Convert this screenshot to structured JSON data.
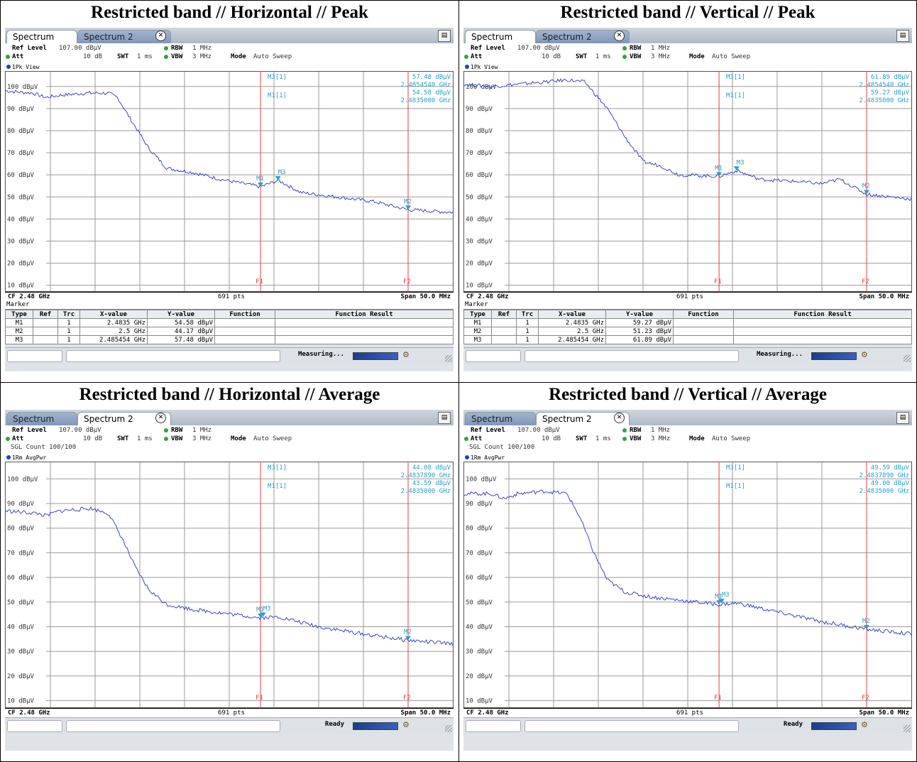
{
  "panels": [
    {
      "title": "Restricted band // Horizontal // Peak",
      "tabs": {
        "tab1": "Spectrum",
        "tab2": "Spectrum 2",
        "active": 1
      },
      "settings": {
        "ref_level_label": "Ref Level",
        "ref_level": "107.00 dBµV",
        "att_label": "Att",
        "att": "10 dB",
        "swt_label": "SWT",
        "swt": "1 ms",
        "rbw_label": "RBW",
        "rbw": "1 MHz",
        "vbw_label": "VBW",
        "vbw": "3 MHz",
        "mode_label": "Mode",
        "mode": "Auto Sweep",
        "sgl_count": ""
      },
      "trace_label": "1Pk View",
      "readout": {
        "line1_name": "M3[1]",
        "line1_value": "57.48 dBµV",
        "line1_freq": "2.4854540 GHz",
        "line2_name": "M1[1]",
        "line2_value": "54.58 dBµV",
        "line2_freq": "2.4835000 GHz"
      },
      "footer": {
        "cf": "CF 2.48 GHz",
        "pts": "691 pts",
        "span": "Span 50.0 MHz"
      },
      "marker_table": {
        "title": "Marker",
        "headers": [
          "Type",
          "Ref",
          "Trc",
          "X-value",
          "Y-value",
          "Function",
          "Function Result"
        ],
        "rows": [
          {
            "type": "M1",
            "ref": "",
            "trc": "1",
            "x": "2.4835 GHz",
            "y": "54.58 dBµV",
            "func": "",
            "result": ""
          },
          {
            "type": "M2",
            "ref": "",
            "trc": "1",
            "x": "2.5 GHz",
            "y": "44.17 dBµV",
            "func": "",
            "result": ""
          },
          {
            "type": "M3",
            "ref": "",
            "trc": "1",
            "x": "2.485454 GHz",
            "y": "57.48 dBµV",
            "func": "",
            "result": ""
          }
        ]
      },
      "status": "Measuring...",
      "colors": {
        "trace": "#3a48c8",
        "marker": "#2a9fc9",
        "line": "#e04040"
      }
    },
    {
      "title": "Restricted band // Vertical // Peak",
      "tabs": {
        "tab1": "Spectrum",
        "tab2": "Spectrum 2",
        "active": 1
      },
      "settings": {
        "ref_level_label": "Ref Level",
        "ref_level": "107.00 dBµV",
        "att_label": "Att",
        "att": "10 dB",
        "swt_label": "SWT",
        "swt": "1 ms",
        "rbw_label": "RBW",
        "rbw": "1 MHz",
        "vbw_label": "VBW",
        "vbw": "3 MHz",
        "mode_label": "Mode",
        "mode": "Auto Sweep",
        "sgl_count": ""
      },
      "trace_label": "1Pk View",
      "readout": {
        "line1_name": "M3[1]",
        "line1_value": "61.89 dBµV",
        "line1_freq": "2.4854540 GHz",
        "line2_name": "M1[1]",
        "line2_value": "59.27 dBµV",
        "line2_freq": "2.4835000 GHz"
      },
      "footer": {
        "cf": "CF 2.48 GHz",
        "pts": "691 pts",
        "span": "Span 50.0 MHz"
      },
      "marker_table": {
        "title": "Marker",
        "headers": [
          "Type",
          "Ref",
          "Trc",
          "X-value",
          "Y-value",
          "Function",
          "Function Result"
        ],
        "rows": [
          {
            "type": "M1",
            "ref": "",
            "trc": "1",
            "x": "2.4835 GHz",
            "y": "59.27 dBµV",
            "func": "",
            "result": ""
          },
          {
            "type": "M2",
            "ref": "",
            "trc": "1",
            "x": "2.5 GHz",
            "y": "51.23 dBµV",
            "func": "",
            "result": ""
          },
          {
            "type": "M3",
            "ref": "",
            "trc": "1",
            "x": "2.485454 GHz",
            "y": "61.89 dBµV",
            "func": "",
            "result": ""
          }
        ]
      },
      "status": "Measuring...",
      "colors": {
        "trace": "#3a48c8",
        "marker": "#2a9fc9",
        "line": "#e04040"
      }
    },
    {
      "title": "Restricted band // Horizontal // Average",
      "tabs": {
        "tab1": "Spectrum",
        "tab2": "Spectrum 2",
        "active": 2
      },
      "settings": {
        "ref_level_label": "Ref Level",
        "ref_level": "107.00 dBµV",
        "att_label": "Att",
        "att": "10 dB",
        "swt_label": "SWT",
        "swt": "1 ms",
        "rbw_label": "RBW",
        "rbw": "1 MHz",
        "vbw_label": "VBW",
        "vbw": "3 MHz",
        "mode_label": "Mode",
        "mode": "Auto Sweep",
        "sgl_count": "SGL Count 100/100"
      },
      "trace_label": "1Rm AvgPwr",
      "readout": {
        "line1_name": "M3[1]",
        "line1_value": "44.08 dBµV",
        "line1_freq": "2.4837890 GHz",
        "line2_name": "M1[1]",
        "line2_value": "43.59 dBµV",
        "line2_freq": "2.4835000 GHz"
      },
      "footer": {
        "cf": "CF 2.48 GHz",
        "pts": "691 pts",
        "span": "Span 50.0 MHz"
      },
      "marker_table": null,
      "status": "Ready",
      "colors": {
        "trace": "#3a48c8",
        "marker": "#2a9fc9",
        "line": "#e04040"
      }
    },
    {
      "title": "Restricted band // Vertical // Average",
      "tabs": {
        "tab1": "Spectrum",
        "tab2": "Spectrum 2",
        "active": 2
      },
      "settings": {
        "ref_level_label": "Ref Level",
        "ref_level": "107.00 dBµV",
        "att_label": "Att",
        "att": "10 dB",
        "swt_label": "SWT",
        "swt": "1 ms",
        "rbw_label": "RBW",
        "rbw": "1 MHz",
        "vbw_label": "VBW",
        "vbw": "3 MHz",
        "mode_label": "Mode",
        "mode": "Auto Sweep",
        "sgl_count": "SGL Count 100/100"
      },
      "trace_label": "1Rm AvgPwr",
      "readout": {
        "line1_name": "M3[1]",
        "line1_value": "49.59 dBµV",
        "line1_freq": "2.4837890 GHz",
        "line2_name": "M1[1]",
        "line2_value": "49.00 dBµV",
        "line2_freq": "2.4835000 GHz"
      },
      "footer": {
        "cf": "CF 2.48 GHz",
        "pts": "691 pts",
        "span": "Span 50.0 MHz"
      },
      "marker_table": null,
      "status": "Ready",
      "colors": {
        "trace": "#3a48c8",
        "marker": "#2a9fc9",
        "line": "#e04040"
      }
    }
  ],
  "chart_data": [
    {
      "type": "line",
      "title": "Restricted band // Horizontal // Peak",
      "xlim": [
        2.455,
        2.505
      ],
      "ylim": [
        7,
        107
      ],
      "yticks": [
        10,
        20,
        30,
        40,
        50,
        60,
        70,
        80,
        90,
        100
      ],
      "ytick_labels": [
        "10 dBµV",
        "20 dBµV",
        "30 dBµV",
        "40 dBµV",
        "50 dBµV",
        "60 dBµV",
        "70 dBµV",
        "80 dBµV",
        "90 dBµV",
        "100 dBµV"
      ],
      "grid": true,
      "series": [
        {
          "x": [
            2.455,
            2.458,
            2.4595,
            2.461,
            2.464,
            2.4665,
            2.4675,
            2.469,
            2.471,
            2.473,
            2.476,
            2.479,
            2.4835,
            2.4855,
            2.488,
            2.492,
            2.496,
            2.5,
            2.505
          ],
          "y": [
            98,
            97,
            95,
            96,
            97,
            97,
            95,
            85,
            72,
            63,
            61,
            58,
            54.6,
            57.5,
            52,
            50,
            48,
            44.2,
            43
          ]
        }
      ],
      "markers": [
        {
          "label": "M1",
          "x": 2.4835,
          "y": 54.58
        },
        {
          "label": "M3",
          "x": 2.485454,
          "y": 57.48
        },
        {
          "label": "M2",
          "x": 2.5,
          "y": 44.17
        }
      ],
      "vlines": [
        {
          "label": "F1",
          "x": 2.4835
        },
        {
          "label": "F2",
          "x": 2.5
        }
      ]
    },
    {
      "type": "line",
      "title": "Restricted band // Vertical // Peak",
      "xlim": [
        2.455,
        2.505
      ],
      "ylim": [
        7,
        107
      ],
      "yticks": [
        10,
        20,
        30,
        40,
        50,
        60,
        70,
        80,
        90,
        100
      ],
      "ytick_labels": [
        "10 dBµV",
        "20 dBµV",
        "30 dBµV",
        "40 dBµV",
        "50 dBµV",
        "60 dBµV",
        "70 dBµV",
        "80 dBµV",
        "90 dBµV",
        "100 dBµV"
      ],
      "grid": true,
      "series": [
        {
          "x": [
            2.455,
            2.458,
            2.461,
            2.464,
            2.4665,
            2.4685,
            2.471,
            2.473,
            2.475,
            2.477,
            2.479,
            2.4835,
            2.4855,
            2.488,
            2.492,
            2.495,
            2.497,
            2.5,
            2.505
          ],
          "y": [
            101,
            100,
            101,
            102,
            103,
            102,
            90,
            77,
            66,
            64,
            60,
            59.3,
            61.9,
            58,
            57,
            56,
            58,
            51.2,
            49
          ]
        }
      ],
      "markers": [
        {
          "label": "M1",
          "x": 2.4835,
          "y": 59.27
        },
        {
          "label": "M3",
          "x": 2.485454,
          "y": 61.89
        },
        {
          "label": "M2",
          "x": 2.5,
          "y": 51.23
        }
      ],
      "vlines": [
        {
          "label": "F1",
          "x": 2.4835
        },
        {
          "label": "F2",
          "x": 2.5
        }
      ]
    },
    {
      "type": "line",
      "title": "Restricted band // Horizontal // Average",
      "xlim": [
        2.455,
        2.505
      ],
      "ylim": [
        7,
        107
      ],
      "yticks": [
        10,
        20,
        30,
        40,
        50,
        60,
        70,
        80,
        90,
        100
      ],
      "ytick_labels": [
        "10 dBµV",
        "20 dBµV",
        "30 dBµV",
        "40 dBµV",
        "50 dBµV",
        "60 dBµV",
        "70 dBµV",
        "80 dBµV",
        "90 dBµV",
        "100 dBµV"
      ],
      "grid": true,
      "series": [
        {
          "x": [
            2.455,
            2.4585,
            2.4595,
            2.461,
            2.4645,
            2.4665,
            2.468,
            2.4695,
            2.471,
            2.473,
            2.476,
            2.4835,
            2.4855,
            2.49,
            2.495,
            2.5,
            2.505
          ],
          "y": [
            87,
            86,
            85,
            87,
            88,
            86,
            76,
            64,
            55,
            49,
            47,
            43.6,
            44,
            40,
            37,
            34.5,
            33
          ]
        }
      ],
      "markers": [
        {
          "label": "M1",
          "x": 2.4835,
          "y": 43.59
        },
        {
          "label": "M3",
          "x": 2.483789,
          "y": 44.08
        },
        {
          "label": "M2",
          "x": 2.5,
          "y": 34.5
        }
      ],
      "vlines": [
        {
          "label": "F1",
          "x": 2.4835
        },
        {
          "label": "F2",
          "x": 2.5
        }
      ]
    },
    {
      "type": "line",
      "title": "Restricted band // Vertical // Average",
      "xlim": [
        2.455,
        2.505
      ],
      "ylim": [
        7,
        107
      ],
      "yticks": [
        10,
        20,
        30,
        40,
        50,
        60,
        70,
        80,
        90,
        100
      ],
      "ytick_labels": [
        "10 dBµV",
        "20 dBµV",
        "30 dBµV",
        "40 dBµV",
        "50 dBµV",
        "60 dBµV",
        "70 dBµV",
        "80 dBµV",
        "90 dBµV",
        "100 dBµV"
      ],
      "grid": true,
      "series": [
        {
          "x": [
            2.455,
            2.458,
            2.4595,
            2.461,
            2.464,
            2.4665,
            2.468,
            2.4695,
            2.471,
            2.473,
            2.476,
            2.4835,
            2.4855,
            2.49,
            2.495,
            2.5,
            2.505
          ],
          "y": [
            94,
            94,
            92,
            94,
            95,
            94,
            84,
            70,
            59,
            54,
            52,
            49,
            49.6,
            46,
            42,
            39,
            37
          ]
        }
      ],
      "markers": [
        {
          "label": "M1",
          "x": 2.4835,
          "y": 49.0
        },
        {
          "label": "M3",
          "x": 2.483789,
          "y": 49.59
        },
        {
          "label": "M2",
          "x": 2.5,
          "y": 39.0
        }
      ],
      "vlines": [
        {
          "label": "F1",
          "x": 2.4835
        },
        {
          "label": "F2",
          "x": 2.5
        }
      ]
    }
  ]
}
